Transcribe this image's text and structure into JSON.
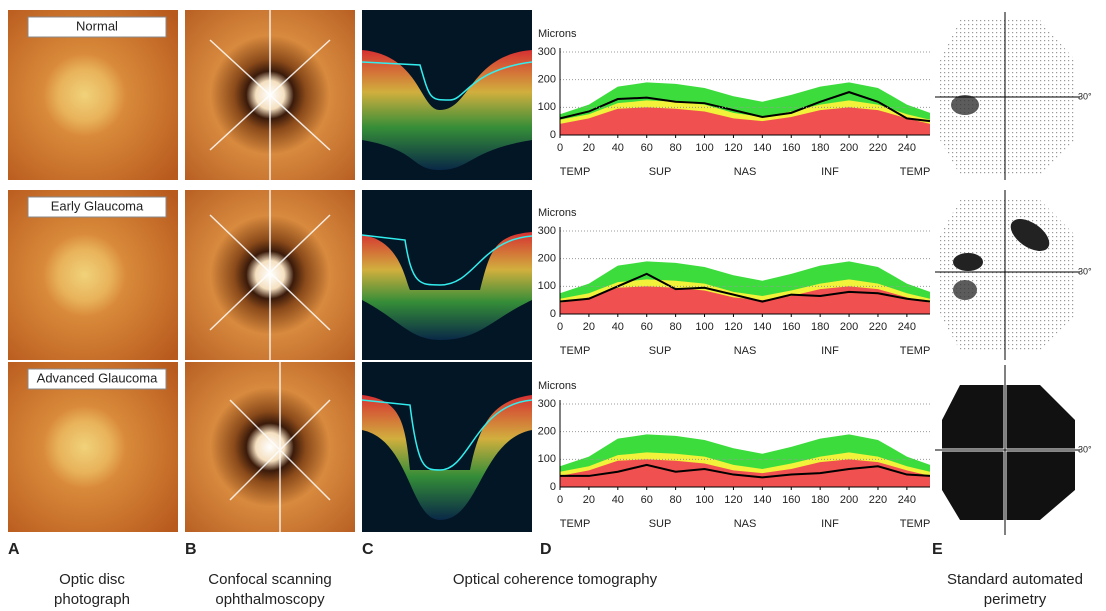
{
  "rows": [
    "Normal",
    "Early Glaucoma",
    "Advanced Glaucoma"
  ],
  "panel_letters": [
    "A",
    "B",
    "C",
    "D",
    "E"
  ],
  "captions": [
    [
      "Optic disc",
      "photograph"
    ],
    [
      "Confocal scanning",
      "ophthalmoscopy"
    ],
    [
      "Optical coherence tomography"
    ],
    [
      "Standard automated",
      "perimetry"
    ]
  ],
  "perimetry_label": "30°",
  "chart_data": [
    {
      "type": "area",
      "y_label": "Microns",
      "x": [
        0,
        20,
        40,
        60,
        80,
        100,
        120,
        140,
        160,
        180,
        200,
        220,
        240,
        256
      ],
      "xlim": [
        0,
        256
      ],
      "ylim": [
        0,
        300
      ],
      "xticks": [
        0,
        20,
        40,
        60,
        80,
        100,
        120,
        140,
        160,
        180,
        200,
        220,
        240
      ],
      "yticks": [
        0,
        100,
        200,
        300
      ],
      "grid": true,
      "region_labels": [
        "TEMP",
        "SUP",
        "NAS",
        "INF",
        "TEMP"
      ],
      "series": [
        {
          "color": "#3ddc3d",
          "values": [
            75,
            110,
            175,
            190,
            185,
            170,
            140,
            120,
            145,
            175,
            190,
            170,
            110,
            80
          ]
        },
        {
          "color": "#f2f23a",
          "values": [
            55,
            75,
            115,
            125,
            120,
            110,
            80,
            65,
            85,
            110,
            125,
            110,
            75,
            55
          ]
        },
        {
          "color": "#f05050",
          "values": [
            40,
            60,
            95,
            100,
            95,
            85,
            60,
            50,
            65,
            90,
            100,
            90,
            60,
            40
          ]
        },
        {
          "color": "#000000",
          "line": true,
          "values": [
            60,
            85,
            130,
            135,
            120,
            115,
            90,
            65,
            80,
            120,
            155,
            120,
            60,
            50
          ]
        }
      ]
    },
    {
      "type": "area",
      "y_label": "Microns",
      "x": [
        0,
        20,
        40,
        60,
        80,
        100,
        120,
        140,
        160,
        180,
        200,
        220,
        240,
        256
      ],
      "xlim": [
        0,
        256
      ],
      "ylim": [
        0,
        300
      ],
      "xticks": [
        0,
        20,
        40,
        60,
        80,
        100,
        120,
        140,
        160,
        180,
        200,
        220,
        240
      ],
      "yticks": [
        0,
        100,
        200,
        300
      ],
      "grid": true,
      "region_labels": [
        "TEMP",
        "SUP",
        "NAS",
        "INF",
        "TEMP"
      ],
      "series": [
        {
          "color": "#3ddc3d",
          "values": [
            75,
            110,
            175,
            190,
            185,
            170,
            140,
            120,
            145,
            175,
            190,
            170,
            110,
            80
          ]
        },
        {
          "color": "#f2f23a",
          "values": [
            55,
            75,
            115,
            125,
            120,
            110,
            80,
            65,
            85,
            110,
            125,
            110,
            75,
            55
          ]
        },
        {
          "color": "#f05050",
          "values": [
            40,
            60,
            95,
            100,
            95,
            85,
            60,
            50,
            65,
            90,
            100,
            90,
            60,
            40
          ]
        },
        {
          "color": "#000000",
          "line": true,
          "values": [
            45,
            55,
            100,
            145,
            90,
            95,
            70,
            45,
            70,
            65,
            80,
            75,
            55,
            45
          ]
        }
      ]
    },
    {
      "type": "area",
      "y_label": "Microns",
      "x": [
        0,
        20,
        40,
        60,
        80,
        100,
        120,
        140,
        160,
        180,
        200,
        220,
        240,
        256
      ],
      "xlim": [
        0,
        256
      ],
      "ylim": [
        0,
        300
      ],
      "xticks": [
        0,
        20,
        40,
        60,
        80,
        100,
        120,
        140,
        160,
        180,
        200,
        220,
        240
      ],
      "yticks": [
        0,
        100,
        200,
        300
      ],
      "grid": true,
      "region_labels": [
        "TEMP",
        "SUP",
        "NAS",
        "INF",
        "TEMP"
      ],
      "series": [
        {
          "color": "#3ddc3d",
          "values": [
            75,
            110,
            175,
            190,
            185,
            170,
            140,
            120,
            145,
            175,
            190,
            170,
            110,
            80
          ]
        },
        {
          "color": "#f2f23a",
          "values": [
            55,
            75,
            115,
            125,
            120,
            110,
            80,
            65,
            85,
            110,
            125,
            110,
            75,
            55
          ]
        },
        {
          "color": "#f05050",
          "values": [
            40,
            60,
            95,
            100,
            95,
            85,
            60,
            50,
            65,
            90,
            100,
            90,
            60,
            40
          ]
        },
        {
          "color": "#000000",
          "line": true,
          "values": [
            40,
            40,
            55,
            80,
            55,
            65,
            45,
            35,
            45,
            50,
            65,
            75,
            45,
            40
          ]
        }
      ]
    }
  ]
}
